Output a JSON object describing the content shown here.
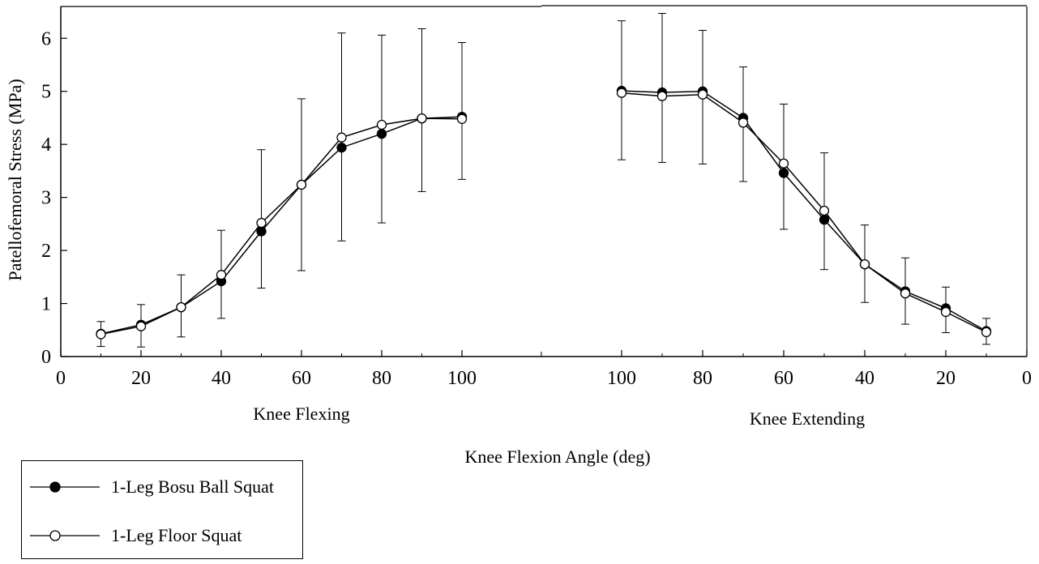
{
  "chart_data": {
    "type": "line",
    "title": "",
    "ylabel": "Patellofemoral Stress (MPa)",
    "xlabel": "Knee Flexion Angle (deg)",
    "ylim": [
      0,
      6.6
    ],
    "yticks": [
      0,
      1,
      2,
      3,
      4,
      5,
      6
    ],
    "segment_labels": [
      "Knee Flexing",
      "Knee Extending"
    ],
    "x_tick_labels": [
      "0",
      "20",
      "40",
      "60",
      "80",
      "100",
      "100",
      "80",
      "60",
      "40",
      "20",
      "0"
    ],
    "x": [
      10,
      20,
      30,
      40,
      50,
      60,
      70,
      80,
      90,
      100,
      100,
      90,
      80,
      70,
      60,
      50,
      40,
      30,
      20,
      10
    ],
    "phase": [
      "flexing",
      "flexing",
      "flexing",
      "flexing",
      "flexing",
      "flexing",
      "flexing",
      "flexing",
      "flexing",
      "flexing",
      "extending",
      "extending",
      "extending",
      "extending",
      "extending",
      "extending",
      "extending",
      "extending",
      "extending",
      "extending"
    ],
    "error_upper": [
      0.66,
      0.98,
      1.54,
      2.38,
      3.9,
      4.86,
      6.1,
      6.06,
      6.18,
      5.92,
      6.33,
      6.47,
      6.15,
      5.46,
      4.76,
      3.84,
      2.48,
      1.86,
      1.31,
      0.72
    ],
    "error_lower": [
      0.19,
      0.18,
      0.37,
      0.72,
      1.29,
      1.62,
      2.18,
      2.52,
      3.11,
      3.34,
      3.71,
      3.66,
      3.63,
      3.3,
      2.4,
      1.64,
      1.02,
      0.61,
      0.45,
      0.23
    ],
    "series": [
      {
        "name": "1-Leg Bosu Ball Squat",
        "marker": "filled",
        "values": [
          0.43,
          0.6,
          0.93,
          1.42,
          2.36,
          3.24,
          3.94,
          4.2,
          4.49,
          4.52,
          5.01,
          4.98,
          5.0,
          4.5,
          3.46,
          2.58,
          1.74,
          1.23,
          0.91,
          0.48
        ]
      },
      {
        "name": "1-Leg Floor Squat",
        "marker": "open",
        "values": [
          0.42,
          0.57,
          0.93,
          1.54,
          2.52,
          3.24,
          4.13,
          4.37,
          4.49,
          4.48,
          4.97,
          4.91,
          4.94,
          4.41,
          3.64,
          2.75,
          1.74,
          1.19,
          0.84,
          0.46
        ]
      }
    ],
    "legend": {
      "position": "bottom-left"
    },
    "grid": false,
    "colors": {
      "line": "#000000",
      "filled_marker": "#000000",
      "open_marker": "#ffffff"
    }
  }
}
